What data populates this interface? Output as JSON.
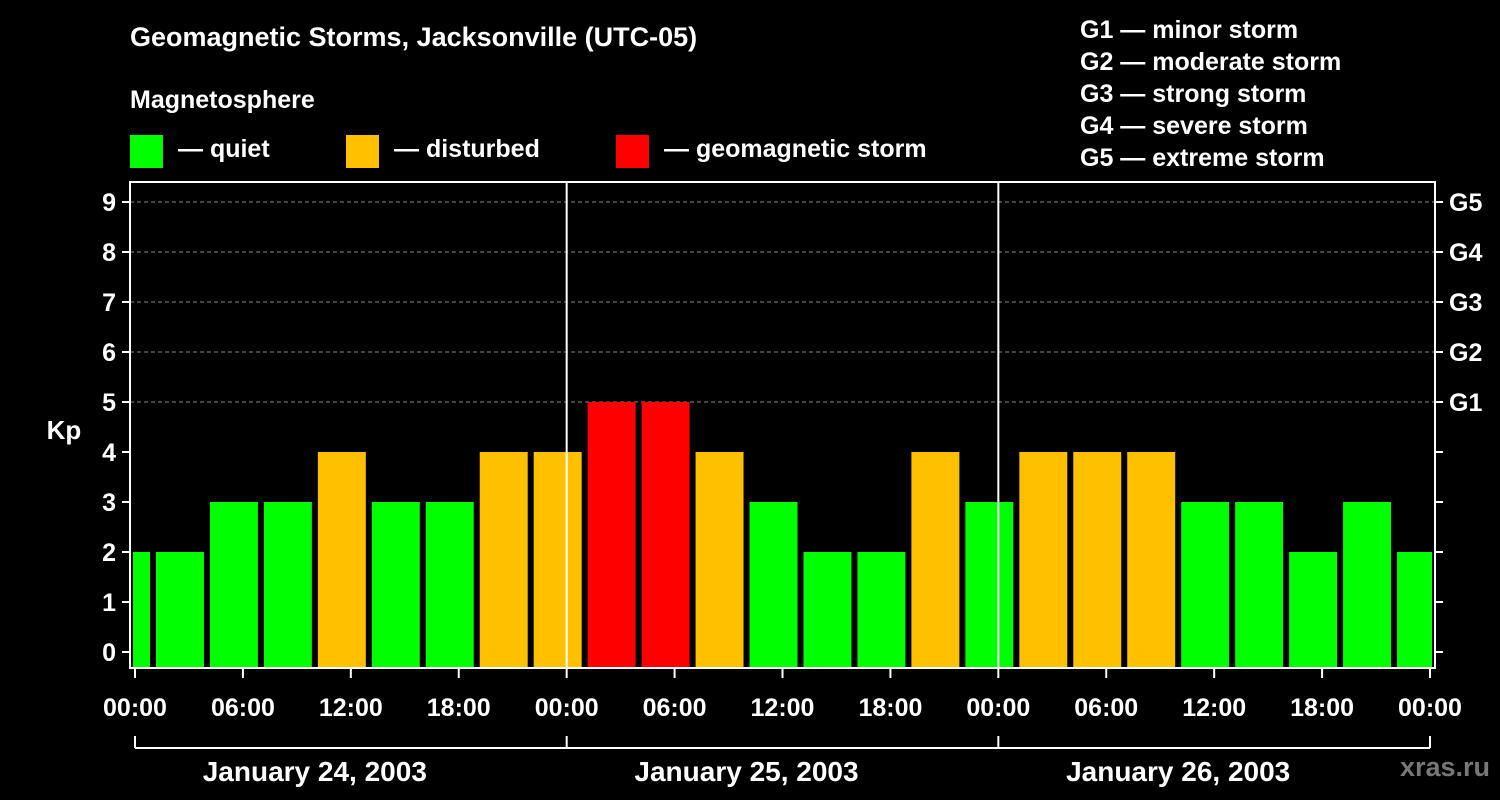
{
  "header": {
    "title": "Geomagnetic Storms, Jacksonville (UTC-05)",
    "subtitle": "Magnetosphere"
  },
  "legend": [
    {
      "label": "— quiet",
      "color": "#00ff00"
    },
    {
      "label": "— disturbed",
      "color": "#ffc000"
    },
    {
      "label": "— geomagnetic storm",
      "color": "#ff0000"
    }
  ],
  "storm_scale": [
    "G1 — minor storm",
    "G2 — moderate storm",
    "G3 — strong storm",
    "G4 — severe storm",
    "G5 — extreme storm"
  ],
  "watermark": "xras.ru",
  "chart_data": {
    "type": "bar",
    "title": "Geomagnetic Storms, Jacksonville (UTC-05)",
    "ylabel": "Kp",
    "ylim": [
      0,
      9
    ],
    "y_ticks": [
      0,
      1,
      2,
      3,
      4,
      5,
      6,
      7,
      8,
      9
    ],
    "right_axis_labels": [
      {
        "kp": 5,
        "label": "G1"
      },
      {
        "kp": 6,
        "label": "G2"
      },
      {
        "kp": 7,
        "label": "G3"
      },
      {
        "kp": 8,
        "label": "G4"
      },
      {
        "kp": 9,
        "label": "G5"
      }
    ],
    "x_range_hours": [
      0,
      72
    ],
    "x_tick_labels": [
      "00:00",
      "06:00",
      "12:00",
      "18:00",
      "00:00",
      "06:00",
      "12:00",
      "18:00",
      "00:00",
      "06:00",
      "12:00",
      "18:00",
      "00:00"
    ],
    "x_tick_step_hours": 6,
    "day_boundaries_hours": [
      24,
      48
    ],
    "days": [
      "January 24, 2003",
      "January 25, 2003",
      "January 26, 2003"
    ],
    "bar_interval_hours": 3,
    "first_bar_start_hours": -2,
    "kp_values": [
      2,
      2,
      3,
      3,
      4,
      3,
      3,
      4,
      4,
      5,
      5,
      4,
      3,
      2,
      2,
      4,
      3,
      4,
      4,
      4,
      3,
      3,
      2,
      3,
      2
    ],
    "colors": {
      "quiet": "#00ff00",
      "disturbed": "#ffc000",
      "storm": "#ff0000"
    },
    "thresholds": {
      "disturbed_min": 4,
      "storm_min": 5
    },
    "grid": true
  }
}
